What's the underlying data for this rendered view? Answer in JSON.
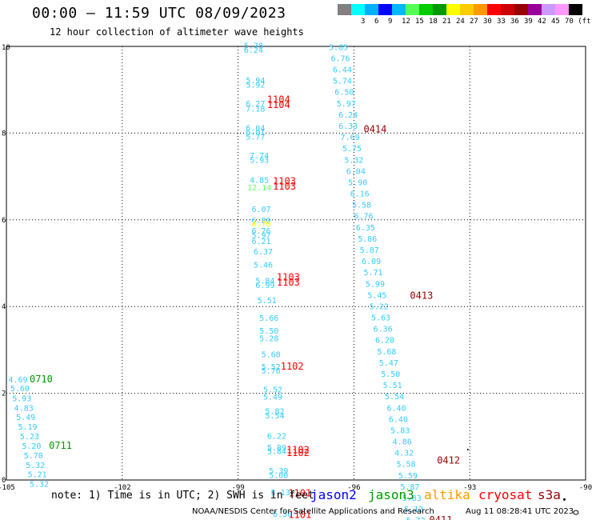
{
  "title": "00:00 – 11:59 UTC 08/09/2023",
  "subtitle": "12 hour collection of altimeter wave heights",
  "legend": {
    "colors": [
      "#808080",
      "#00ffff",
      "#00b0ff",
      "#0000ff",
      "#00b8ff",
      "#55ff55",
      "#00cc00",
      "#009900",
      "#ffff00",
      "#ffcc00",
      "#ff9900",
      "#ff0000",
      "#cc0000",
      "#990000",
      "#990099",
      "#cc99ff",
      "#ff99ff",
      "#000000"
    ],
    "labels": [
      "3",
      "6",
      "9",
      "12",
      "15",
      "18",
      "21",
      "24",
      "27",
      "30",
      "33",
      "36",
      "39",
      "42",
      "45",
      "70 (ft)"
    ]
  },
  "axes": {
    "x_ticks": [
      "-105",
      "-102",
      "-99",
      "-96",
      "-93",
      "-90"
    ],
    "y_ticks": [
      "0",
      "2",
      "4",
      "6",
      "8",
      "10"
    ]
  },
  "note": "note: 1) Time is in UTC; 2) SWH is in feet",
  "satellites": [
    {
      "name": "jason2",
      "color": "#0000ff"
    },
    {
      "name": "jason3",
      "color": "#009900"
    },
    {
      "name": "altika",
      "color": "#ff9900"
    },
    {
      "name": "cryosat",
      "color": "#ff0000"
    },
    {
      "name": "s3a",
      "color": "#990000"
    }
  ],
  "footer": "NOAA/NESDIS Center for Satellite Applications and Research",
  "footer_date": "Aug 11 08:28:41 UTC 2023",
  "observations": [
    {
      "x": -98.6,
      "y": 9.95,
      "v": "5.78",
      "c": "#33ccff"
    },
    {
      "x": -98.6,
      "y": 9.85,
      "v": "6.24",
      "c": "#33ccff"
    },
    {
      "x": -98.55,
      "y": 9.15,
      "v": "5.94",
      "c": "#33ccff"
    },
    {
      "x": -98.55,
      "y": 9.05,
      "v": "5.92",
      "c": "#33ccff"
    },
    {
      "x": -98.55,
      "y": 8.62,
      "v": "6.27",
      "c": "#33ccff"
    },
    {
      "x": -98.55,
      "y": 8.5,
      "v": "7.18",
      "c": "#33ccff"
    },
    {
      "x": -98.55,
      "y": 8.05,
      "v": "6.04",
      "c": "#33ccff"
    },
    {
      "x": -98.55,
      "y": 7.95,
      "v": "6.01",
      "c": "#33ccff"
    },
    {
      "x": -98.55,
      "y": 7.85,
      "v": "5.77",
      "c": "#33ccff"
    },
    {
      "x": -98.45,
      "y": 7.42,
      "v": "7.74",
      "c": "#33ccff"
    },
    {
      "x": -98.45,
      "y": 7.32,
      "v": "5.93",
      "c": "#33ccff"
    },
    {
      "x": -98.45,
      "y": 6.85,
      "v": "4.85",
      "c": "#33ccff"
    },
    {
      "x": -98.45,
      "y": 6.68,
      "v": "12.14",
      "c": "#66ff66"
    },
    {
      "x": -98.4,
      "y": 6.18,
      "v": "6.07",
      "c": "#33ccff"
    },
    {
      "x": -98.4,
      "y": 5.92,
      "v": "6.80",
      "c": "#33ccff"
    },
    {
      "x": -98.4,
      "y": 5.85,
      "v": "4.70",
      "c": "#ffff00"
    },
    {
      "x": -98.4,
      "y": 5.68,
      "v": "6.76",
      "c": "#33ccff"
    },
    {
      "x": -98.4,
      "y": 5.58,
      "v": "5.97",
      "c": "#33ccff"
    },
    {
      "x": -98.4,
      "y": 5.44,
      "v": "6.21",
      "c": "#33ccff"
    },
    {
      "x": -98.35,
      "y": 5.2,
      "v": "6.37",
      "c": "#33ccff"
    },
    {
      "x": -98.35,
      "y": 4.9,
      "v": "5.46",
      "c": "#33ccff"
    },
    {
      "x": -98.3,
      "y": 4.53,
      "v": "5.84",
      "c": "#33ccff"
    },
    {
      "x": -98.3,
      "y": 4.43,
      "v": "6.99",
      "c": "#33ccff"
    },
    {
      "x": -98.25,
      "y": 4.08,
      "v": "5.51",
      "c": "#33ccff"
    },
    {
      "x": -98.2,
      "y": 3.67,
      "v": "5.66",
      "c": "#33ccff"
    },
    {
      "x": -98.2,
      "y": 3.38,
      "v": "5.50",
      "c": "#33ccff"
    },
    {
      "x": -98.2,
      "y": 3.2,
      "v": "5.28",
      "c": "#33ccff"
    },
    {
      "x": -98.15,
      "y": 2.83,
      "v": "5.68",
      "c": "#33ccff"
    },
    {
      "x": -98.15,
      "y": 2.55,
      "v": "5.52",
      "c": "#33ccff"
    },
    {
      "x": -98.15,
      "y": 2.45,
      "v": "5.76",
      "c": "#33ccff"
    },
    {
      "x": -98.1,
      "y": 2.02,
      "v": "5.52",
      "c": "#33ccff"
    },
    {
      "x": -98.1,
      "y": 1.85,
      "v": "5.49",
      "c": "#33ccff"
    },
    {
      "x": -98.05,
      "y": 1.52,
      "v": "5.82",
      "c": "#33ccff"
    },
    {
      "x": -98.05,
      "y": 1.42,
      "v": "5.54",
      "c": "#33ccff"
    },
    {
      "x": -98.0,
      "y": 0.95,
      "v": "6.22",
      "c": "#33ccff"
    },
    {
      "x": -98.0,
      "y": 0.68,
      "v": "5.89",
      "c": "#33ccff"
    },
    {
      "x": -98.0,
      "y": 0.6,
      "v": "5.84",
      "c": "#33ccff"
    },
    {
      "x": -97.95,
      "y": 0.15,
      "v": "5.39",
      "c": "#33ccff"
    },
    {
      "x": -97.95,
      "y": 0.05,
      "v": "5.00",
      "c": "#33ccff"
    },
    {
      "x": -97.9,
      "y": -0.35,
      "v": "5.13",
      "c": "#33ccff"
    },
    {
      "x": -97.85,
      "y": -0.85,
      "v": "6.30",
      "c": "#33ccff"
    },
    {
      "x": -96.4,
      "y": 9.92,
      "v": "5.85",
      "c": "#33ccff"
    },
    {
      "x": -96.35,
      "y": 9.66,
      "v": "6.76",
      "c": "#33ccff"
    },
    {
      "x": -96.3,
      "y": 9.4,
      "v": "6.44",
      "c": "#33ccff"
    },
    {
      "x": -96.3,
      "y": 9.14,
      "v": "5.74",
      "c": "#33ccff"
    },
    {
      "x": -96.25,
      "y": 8.88,
      "v": "6.50",
      "c": "#33ccff"
    },
    {
      "x": -96.2,
      "y": 8.62,
      "v": "5.97",
      "c": "#33ccff"
    },
    {
      "x": -96.15,
      "y": 8.36,
      "v": "6.24",
      "c": "#33ccff"
    },
    {
      "x": -96.15,
      "y": 8.1,
      "v": "6.33",
      "c": "#33ccff"
    },
    {
      "x": -96.1,
      "y": 7.84,
      "v": "7.69",
      "c": "#33ccff"
    },
    {
      "x": -96.05,
      "y": 7.58,
      "v": "5.75",
      "c": "#33ccff"
    },
    {
      "x": -96.0,
      "y": 7.32,
      "v": "5.32",
      "c": "#33ccff"
    },
    {
      "x": -95.95,
      "y": 7.06,
      "v": "6.04",
      "c": "#33ccff"
    },
    {
      "x": -95.9,
      "y": 6.8,
      "v": "5.90",
      "c": "#33ccff"
    },
    {
      "x": -95.85,
      "y": 6.54,
      "v": "6.16",
      "c": "#33ccff"
    },
    {
      "x": -95.8,
      "y": 6.28,
      "v": "5.58",
      "c": "#33ccff"
    },
    {
      "x": -95.75,
      "y": 6.02,
      "v": "6.76",
      "c": "#33ccff"
    },
    {
      "x": -95.7,
      "y": 5.76,
      "v": "6.35",
      "c": "#33ccff"
    },
    {
      "x": -95.65,
      "y": 5.5,
      "v": "5.86",
      "c": "#33ccff"
    },
    {
      "x": -95.6,
      "y": 5.24,
      "v": "5.87",
      "c": "#33ccff"
    },
    {
      "x": -95.55,
      "y": 4.98,
      "v": "6.09",
      "c": "#33ccff"
    },
    {
      "x": -95.5,
      "y": 4.72,
      "v": "5.71",
      "c": "#33ccff"
    },
    {
      "x": -95.45,
      "y": 4.46,
      "v": "5.99",
      "c": "#33ccff"
    },
    {
      "x": -95.4,
      "y": 4.2,
      "v": "5.45",
      "c": "#33ccff"
    },
    {
      "x": -95.35,
      "y": 3.94,
      "v": "5.22",
      "c": "#33ccff"
    },
    {
      "x": -95.3,
      "y": 3.68,
      "v": "5.63",
      "c": "#33ccff"
    },
    {
      "x": -95.25,
      "y": 3.42,
      "v": "6.36",
      "c": "#33ccff"
    },
    {
      "x": -95.2,
      "y": 3.16,
      "v": "6.28",
      "c": "#33ccff"
    },
    {
      "x": -95.15,
      "y": 2.9,
      "v": "5.68",
      "c": "#33ccff"
    },
    {
      "x": -95.1,
      "y": 2.64,
      "v": "5.47",
      "c": "#33ccff"
    },
    {
      "x": -95.05,
      "y": 2.38,
      "v": "5.50",
      "c": "#33ccff"
    },
    {
      "x": -95.0,
      "y": 2.12,
      "v": "5.51",
      "c": "#33ccff"
    },
    {
      "x": -94.95,
      "y": 1.86,
      "v": "5.54",
      "c": "#33ccff"
    },
    {
      "x": -94.9,
      "y": 1.6,
      "v": "6.40",
      "c": "#33ccff"
    },
    {
      "x": -94.85,
      "y": 1.34,
      "v": "6.40",
      "c": "#33ccff"
    },
    {
      "x": -94.8,
      "y": 1.08,
      "v": "5.83",
      "c": "#33ccff"
    },
    {
      "x": -94.75,
      "y": 0.82,
      "v": "4.86",
      "c": "#33ccff"
    },
    {
      "x": -94.7,
      "y": 0.56,
      "v": "4.32",
      "c": "#33ccff"
    },
    {
      "x": -94.65,
      "y": 0.3,
      "v": "5.58",
      "c": "#33ccff"
    },
    {
      "x": -94.6,
      "y": 0.04,
      "v": "5.59",
      "c": "#33ccff"
    },
    {
      "x": -94.55,
      "y": -0.22,
      "v": "5.87",
      "c": "#33ccff"
    },
    {
      "x": -94.5,
      "y": -0.48,
      "v": "5.83",
      "c": "#33ccff"
    },
    {
      "x": -94.45,
      "y": -0.74,
      "v": "5.12",
      "c": "#33ccff"
    },
    {
      "x": -94.4,
      "y": -1.0,
      "v": "5.72",
      "c": "#33ccff"
    },
    {
      "x": -104.7,
      "y": 2.25,
      "v": "4.69",
      "c": "#33ccff"
    },
    {
      "x": -104.65,
      "y": 2.05,
      "v": "5.60",
      "c": "#33ccff"
    },
    {
      "x": -104.6,
      "y": 1.82,
      "v": "5.93",
      "c": "#33ccff"
    },
    {
      "x": -104.55,
      "y": 1.6,
      "v": "4.83",
      "c": "#33ccff"
    },
    {
      "x": -104.5,
      "y": 1.38,
      "v": "5.49",
      "c": "#33ccff"
    },
    {
      "x": -104.45,
      "y": 1.16,
      "v": "5.19",
      "c": "#33ccff"
    },
    {
      "x": -104.4,
      "y": 0.94,
      "v": "5.23",
      "c": "#33ccff"
    },
    {
      "x": -104.35,
      "y": 0.72,
      "v": "5.20",
      "c": "#33ccff"
    },
    {
      "x": -104.3,
      "y": 0.5,
      "v": "5.70",
      "c": "#33ccff"
    },
    {
      "x": -104.25,
      "y": 0.28,
      "v": "5.32",
      "c": "#33ccff"
    },
    {
      "x": -104.2,
      "y": 0.06,
      "v": "5.21",
      "c": "#33ccff"
    },
    {
      "x": -104.15,
      "y": -0.16,
      "v": "5.32",
      "c": "#33ccff"
    }
  ],
  "passes": [
    {
      "x": -97.95,
      "y": 8.7,
      "v": "1104",
      "c": "#ff0000"
    },
    {
      "x": -97.95,
      "y": 8.58,
      "v": "1104",
      "c": "#ff0000"
    },
    {
      "x": -97.8,
      "y": 6.82,
      "v": "1103",
      "c": "#ff0000"
    },
    {
      "x": -97.8,
      "y": 6.7,
      "v": "1103",
      "c": "#ff0000"
    },
    {
      "x": -97.7,
      "y": 4.6,
      "v": "1103",
      "c": "#ff0000"
    },
    {
      "x": -97.7,
      "y": 4.48,
      "v": "1103",
      "c": "#ff0000"
    },
    {
      "x": -97.6,
      "y": 2.55,
      "v": "1102",
      "c": "#ff0000"
    },
    {
      "x": -97.45,
      "y": 0.62,
      "v": "1102",
      "c": "#ff0000"
    },
    {
      "x": -97.45,
      "y": 0.55,
      "v": "1102",
      "c": "#ff0000"
    },
    {
      "x": -97.4,
      "y": -0.38,
      "v": "1101",
      "c": "#ff0000"
    },
    {
      "x": -97.4,
      "y": -0.88,
      "v": "1101",
      "c": "#ff0000"
    },
    {
      "x": -95.45,
      "y": 8.02,
      "v": "0414",
      "c": "#990000"
    },
    {
      "x": -94.25,
      "y": 4.18,
      "v": "0413",
      "c": "#990000"
    },
    {
      "x": -93.55,
      "y": 0.38,
      "v": "0412",
      "c": "#990000"
    },
    {
      "x": -93.75,
      "y": -1.0,
      "v": "0411",
      "c": "#990000"
    },
    {
      "x": -104.1,
      "y": 2.25,
      "v": "0710",
      "c": "#009900"
    },
    {
      "x": -103.6,
      "y": 0.72,
      "v": "0711",
      "c": "#009900"
    }
  ]
}
